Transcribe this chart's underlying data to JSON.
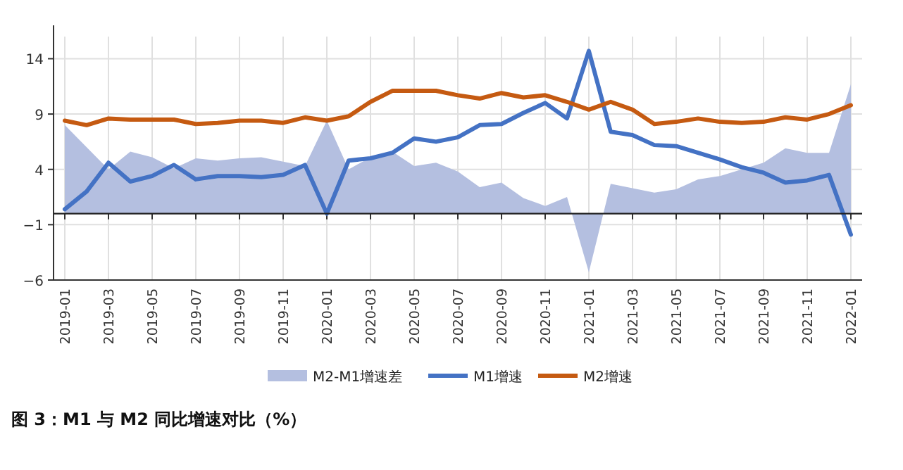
{
  "chart_data": {
    "type": "line",
    "title": "图 3：M1 与 M2 同比增速对比（%）",
    "categories": [
      "2019-01",
      null,
      "2019-03",
      null,
      "2019-05",
      null,
      "2019-07",
      null,
      "2019-09",
      null,
      "2019-11",
      null,
      "2020-01",
      null,
      "2020-03",
      null,
      "2020-05",
      null,
      "2020-07",
      null,
      "2020-09",
      null,
      "2020-11",
      null,
      "2021-01",
      null,
      "2021-03",
      null,
      "2021-05",
      null,
      "2021-07",
      null,
      "2021-09",
      null,
      "2021-11",
      null,
      "2022-01"
    ],
    "series": [
      {
        "name": "M2-M1增速差",
        "type": "area",
        "color": "#b4bfe0",
        "values": [
          8.0,
          6.0,
          4.0,
          5.6,
          5.1,
          4.1,
          5.0,
          4.8,
          5.0,
          5.1,
          4.7,
          4.3,
          8.4,
          4.0,
          5.1,
          5.6,
          4.3,
          4.6,
          3.8,
          2.4,
          2.8,
          1.4,
          0.7,
          1.5,
          -5.3,
          2.7,
          2.3,
          1.9,
          2.2,
          3.1,
          3.4,
          4.0,
          4.6,
          5.9,
          5.5,
          5.5,
          11.7
        ]
      },
      {
        "name": "M1增速",
        "color": "#4472c4",
        "values": [
          0.4,
          2.0,
          4.6,
          2.9,
          3.4,
          4.4,
          3.1,
          3.4,
          3.4,
          3.3,
          3.5,
          4.4,
          0.0,
          4.8,
          5.0,
          5.5,
          6.8,
          6.5,
          6.9,
          8.0,
          8.1,
          9.1,
          10.0,
          8.6,
          14.7,
          7.4,
          7.1,
          6.2,
          6.1,
          5.5,
          4.9,
          4.2,
          3.7,
          2.8,
          3.0,
          3.5,
          -1.9
        ]
      },
      {
        "name": "M2增速",
        "color": "#c55a11",
        "values": [
          8.4,
          8.0,
          8.6,
          8.5,
          8.5,
          8.5,
          8.1,
          8.2,
          8.4,
          8.4,
          8.2,
          8.7,
          8.4,
          8.8,
          10.1,
          11.1,
          11.1,
          11.1,
          10.7,
          10.4,
          10.9,
          10.5,
          10.7,
          10.1,
          9.4,
          10.1,
          9.4,
          8.1,
          8.3,
          8.6,
          8.3,
          8.2,
          8.3,
          8.7,
          8.5,
          9.0,
          9.8
        ]
      }
    ],
    "ylim": [
      -6,
      16
    ],
    "yticks": [
      -6,
      -1,
      4,
      9,
      14
    ],
    "grid": true,
    "legend": "bottom"
  }
}
